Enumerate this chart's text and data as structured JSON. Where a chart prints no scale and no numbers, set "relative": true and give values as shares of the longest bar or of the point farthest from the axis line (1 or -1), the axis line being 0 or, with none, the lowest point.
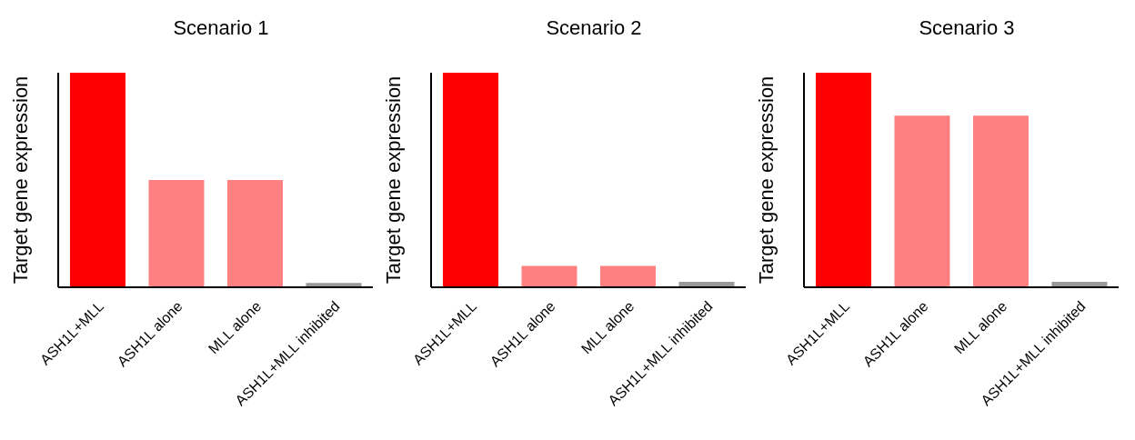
{
  "chart_data": [
    {
      "type": "bar",
      "title": "Scenario 1",
      "ylabel": "Target gene expression",
      "relative": true,
      "categories": [
        "ASH1L+MLL",
        "ASH1L alone",
        "MLL alone",
        "ASH1L+MLL inhibited"
      ],
      "values": [
        1,
        0.5,
        0.5,
        0.02
      ],
      "colors": [
        "#ff0000",
        "#ff8080",
        "#ff8080",
        "#999999"
      ]
    },
    {
      "type": "bar",
      "title": "Scenario 2",
      "ylabel": "Target gene expression",
      "relative": true,
      "categories": [
        "ASH1L+MLL",
        "ASH1L alone",
        "MLL alone",
        "ASH1L+MLL inhibited"
      ],
      "values": [
        1,
        0.1,
        0.1,
        0.025
      ],
      "colors": [
        "#ff0000",
        "#ff8080",
        "#ff8080",
        "#999999"
      ]
    },
    {
      "type": "bar",
      "title": "Scenario 3",
      "ylabel": "Target gene expression",
      "relative": true,
      "categories": [
        "ASH1L+MLL",
        "ASH1L alone",
        "MLL alone",
        "ASH1L+MLL inhibited"
      ],
      "values": [
        1,
        0.8,
        0.8,
        0.025
      ],
      "colors": [
        "#ff0000",
        "#ff8080",
        "#ff8080",
        "#999999"
      ]
    }
  ]
}
